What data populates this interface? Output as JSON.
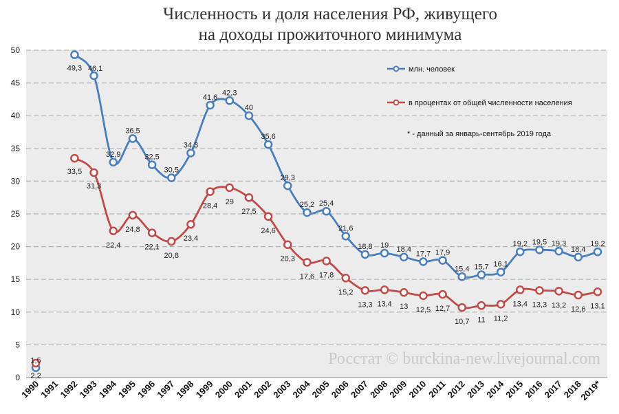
{
  "title": {
    "line1": "Численность и доля населения РФ, живущего",
    "line2": "на доходы прожиточного минимума"
  },
  "watermark": "Росстат © burckina-new.livejournal.com",
  "note": "* - данный за январь-сентябрь 2019 года",
  "colors": {
    "series_mln": "#4a7ebb",
    "series_pct": "#be4b48",
    "grid": "#b3b3b3",
    "plot_bg": "#ececec"
  },
  "chart_data": {
    "type": "line",
    "ylim": [
      0,
      50
    ],
    "yticks": [
      0,
      5,
      10,
      15,
      20,
      25,
      30,
      35,
      40,
      45,
      50
    ],
    "grid": true,
    "legend_position": "top-right",
    "categories": [
      "1990",
      "1991",
      "1992",
      "1993",
      "1994",
      "1995",
      "1996",
      "1997",
      "1998",
      "1999",
      "2000",
      "2001",
      "2002",
      "2003",
      "2004",
      "2005",
      "2006",
      "2007",
      "2008",
      "2009",
      "2010",
      "2011",
      "2012",
      "2013",
      "2014",
      "2015",
      "2016",
      "2017",
      "2018",
      "2019*"
    ],
    "series": [
      {
        "name": "млн. человек",
        "values": [
          1.5,
          null,
          49.3,
          46.1,
          32.9,
          36.5,
          32.5,
          30.5,
          34.3,
          41.6,
          42.3,
          40,
          35.6,
          29.3,
          25.2,
          25.4,
          21.6,
          18.8,
          19,
          18.4,
          17.7,
          17.9,
          15.4,
          15.7,
          16.1,
          19.2,
          19.5,
          19.3,
          18.4,
          19.2
        ],
        "labels": [
          "1,5",
          "",
          "49,3",
          "46,1",
          "32,9",
          "36,5",
          "32,5",
          "30,5",
          "34,3",
          "41,6",
          "42,3",
          "40",
          "35,6",
          "29,3",
          "25,2",
          "25,4",
          "21,6",
          "18,8",
          "19",
          "18,4",
          "17,7",
          "17,9",
          "15,4",
          "15,7",
          "16,1",
          "19,2",
          "19,5",
          "19,3",
          "18,4",
          "19,2"
        ]
      },
      {
        "name": "в процентах от общей численности населения",
        "values": [
          2.2,
          null,
          33.5,
          31.3,
          22.4,
          24.8,
          22.1,
          20.8,
          23.4,
          28.4,
          29,
          27.5,
          24.6,
          20.3,
          17.6,
          17.8,
          15.2,
          13.3,
          13.4,
          13,
          12.5,
          12.7,
          10.7,
          11,
          11.2,
          13.4,
          13.3,
          13.2,
          12.6,
          13.1
        ],
        "labels": [
          "2,2",
          "",
          "33,5",
          "31,3",
          "22,4",
          "24,8",
          "22,1",
          "20,8",
          "23,4",
          "28,4",
          "29",
          "27,5",
          "24,6",
          "20,3",
          "17,6",
          "17,8",
          "15,2",
          "13,3",
          "13,4",
          "13",
          "12,5",
          "12,7",
          "10,7",
          "11",
          "11,2",
          "13,4",
          "13,3",
          "13,2",
          "12,6",
          "13,1"
        ]
      }
    ]
  }
}
